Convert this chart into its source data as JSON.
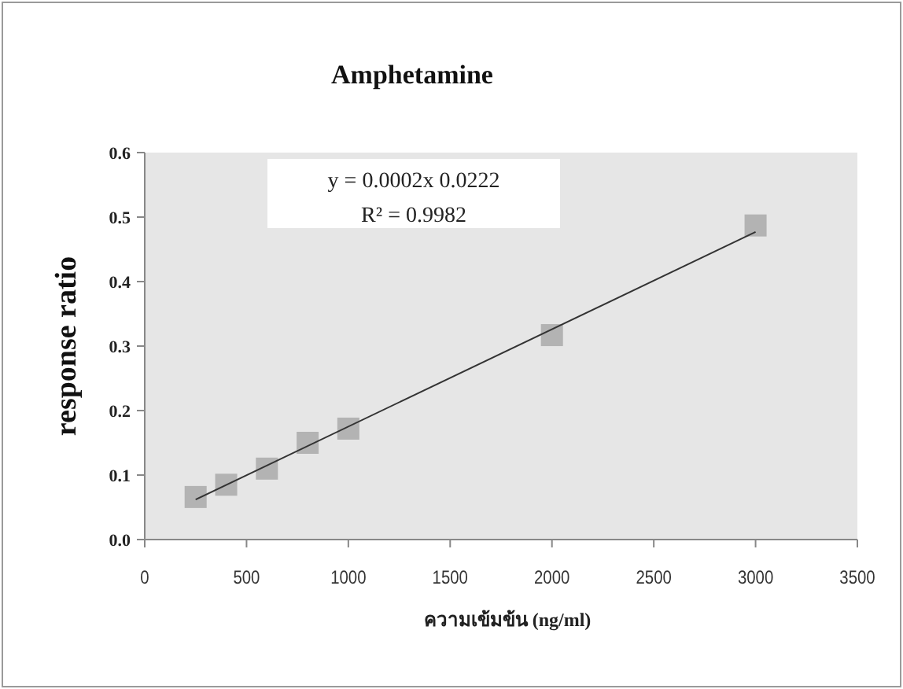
{
  "chart_data": {
    "type": "scatter",
    "title": "Amphetamine",
    "xlabel": "ความเข้มข้น (ng/ml)",
    "ylabel": "response ratio",
    "xlim": [
      0,
      3500
    ],
    "xticks": [
      0,
      500,
      1000,
      1500,
      2000,
      2500,
      3000,
      3500
    ],
    "ylim": [
      0,
      0.6
    ],
    "yticks": [
      {
        "value": 0,
        "label": "0.0"
      },
      0.1,
      0.2,
      0.3,
      0.4,
      0.5,
      0.6
    ],
    "series": [
      {
        "marker": "square",
        "color": "#b3b3b3",
        "x": [
          250,
          400,
          600,
          800,
          1000,
          2000,
          3000
        ],
        "values": [
          0.066,
          0.085,
          0.11,
          0.15,
          0.172,
          0.317,
          0.487
        ]
      },
      {
        "type": "line",
        "marker": "none",
        "color": "#333333",
        "x": [
          250,
          3000
        ],
        "values": [
          0.062,
          0.477
        ]
      }
    ],
    "annotations": [
      "y = 0.0002x 0.0222",
      "R² = 0.9982"
    ]
  }
}
